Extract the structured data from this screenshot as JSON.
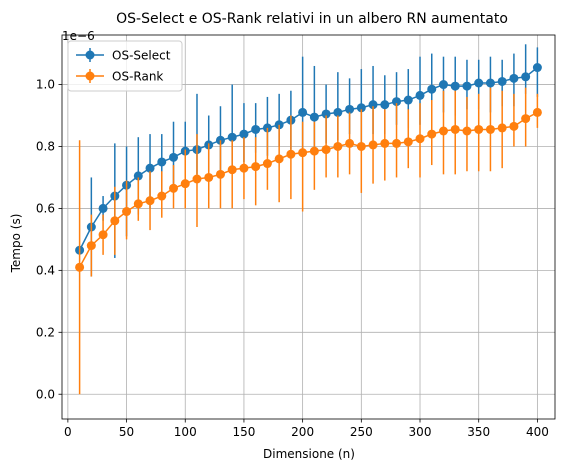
{
  "chart_data": {
    "type": "line",
    "title": "OS-Select e OS-Rank relativi in un albero RN aumentato",
    "xlabel": "Dimensione (n)",
    "ylabel": "Tempo (s)",
    "y_offset_label": "1e−6",
    "xlim": [
      -5,
      415
    ],
    "ylim": [
      -0.08,
      1.16
    ],
    "x_ticks": [
      0,
      50,
      100,
      150,
      200,
      250,
      300,
      350,
      400
    ],
    "x_tick_labels": [
      "0",
      "50",
      "100",
      "150",
      "200",
      "250",
      "300",
      "350",
      "400"
    ],
    "y_ticks": [
      0.0,
      0.2,
      0.4,
      0.6,
      0.8,
      1.0
    ],
    "y_tick_labels": [
      "0.0",
      "0.2",
      "0.4",
      "0.6",
      "0.8",
      "1.0"
    ],
    "grid": true,
    "legend_position": "top-left",
    "x": [
      10,
      20,
      30,
      40,
      50,
      60,
      70,
      80,
      90,
      100,
      110,
      120,
      130,
      140,
      150,
      160,
      170,
      180,
      190,
      200,
      210,
      220,
      230,
      240,
      250,
      260,
      270,
      280,
      290,
      300,
      310,
      320,
      330,
      340,
      350,
      360,
      370,
      380,
      390,
      400
    ],
    "series": [
      {
        "name": "OS-Select",
        "color": "#1f77b4",
        "values": [
          0.465,
          0.54,
          0.6,
          0.64,
          0.675,
          0.705,
          0.73,
          0.75,
          0.765,
          0.785,
          0.79,
          0.805,
          0.82,
          0.83,
          0.84,
          0.855,
          0.86,
          0.87,
          0.885,
          0.91,
          0.895,
          0.905,
          0.91,
          0.92,
          0.925,
          0.935,
          0.935,
          0.945,
          0.95,
          0.965,
          0.985,
          1.0,
          0.995,
          0.995,
          1.005,
          1.005,
          1.01,
          1.02,
          1.025,
          1.055
        ],
        "err_low": [
          0.46,
          0.38,
          0.56,
          0.44,
          0.51,
          0.58,
          0.6,
          0.64,
          0.65,
          0.69,
          0.71,
          0.72,
          0.72,
          0.72,
          0.75,
          0.78,
          0.77,
          0.8,
          0.79,
          0.79,
          0.78,
          0.81,
          0.82,
          0.84,
          0.81,
          0.84,
          0.84,
          0.87,
          0.86,
          0.87,
          0.89,
          0.91,
          0.9,
          0.92,
          0.92,
          0.91,
          0.93,
          0.93,
          0.97,
          0.96
        ],
        "err_high": [
          0.48,
          0.7,
          0.64,
          0.81,
          0.8,
          0.83,
          0.84,
          0.84,
          0.88,
          0.88,
          0.97,
          0.9,
          0.93,
          1.0,
          0.94,
          0.94,
          0.96,
          0.97,
          0.98,
          1.09,
          1.06,
          1.0,
          1.04,
          1.02,
          1.05,
          1.06,
          1.03,
          1.04,
          1.05,
          1.09,
          1.1,
          1.09,
          1.09,
          1.08,
          1.08,
          1.09,
          1.08,
          1.1,
          1.13,
          1.12
        ]
      },
      {
        "name": "OS-Rank",
        "color": "#ff7f0e",
        "values": [
          0.41,
          0.48,
          0.515,
          0.56,
          0.59,
          0.615,
          0.625,
          0.64,
          0.665,
          0.68,
          0.695,
          0.7,
          0.71,
          0.725,
          0.73,
          0.735,
          0.745,
          0.76,
          0.775,
          0.78,
          0.785,
          0.79,
          0.8,
          0.81,
          0.8,
          0.805,
          0.81,
          0.81,
          0.815,
          0.825,
          0.84,
          0.85,
          0.855,
          0.85,
          0.855,
          0.855,
          0.86,
          0.865,
          0.89,
          0.91
        ],
        "err_low": [
          0.0,
          0.38,
          0.45,
          0.45,
          0.5,
          0.56,
          0.53,
          0.57,
          0.6,
          0.6,
          0.54,
          0.6,
          0.6,
          0.6,
          0.63,
          0.61,
          0.66,
          0.62,
          0.63,
          0.59,
          0.66,
          0.7,
          0.7,
          0.71,
          0.65,
          0.68,
          0.69,
          0.7,
          0.73,
          0.7,
          0.74,
          0.71,
          0.71,
          0.72,
          0.72,
          0.72,
          0.73,
          0.8,
          0.8,
          0.86
        ],
        "err_high": [
          0.82,
          0.58,
          0.58,
          0.67,
          0.69,
          0.7,
          0.72,
          0.72,
          0.74,
          0.79,
          0.84,
          0.81,
          0.82,
          0.82,
          0.83,
          0.83,
          0.86,
          0.87,
          0.9,
          0.88,
          0.88,
          0.9,
          0.9,
          0.91,
          0.92,
          0.93,
          0.92,
          0.94,
          0.92,
          0.94,
          0.95,
          0.98,
          0.98,
          0.96,
          0.97,
          0.99,
          0.98,
          0.97,
          0.99,
          0.97
        ]
      }
    ]
  }
}
